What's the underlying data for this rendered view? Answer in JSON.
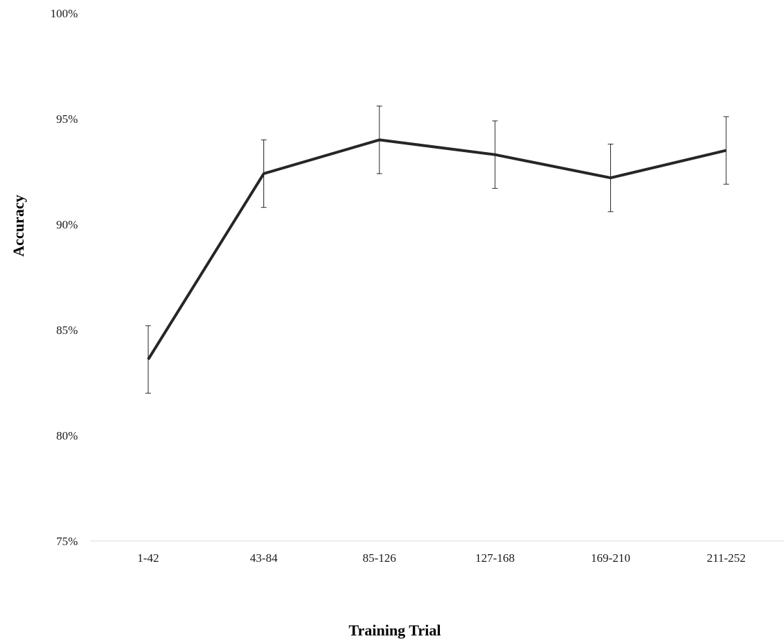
{
  "chart_data": {
    "type": "line",
    "title": "",
    "xlabel": "Training Trial",
    "ylabel": "Accuracy",
    "categories": [
      "1-42",
      "43-84",
      "85-126",
      "127-168",
      "169-210",
      "211-252"
    ],
    "series": [
      {
        "values": [
          83.6,
          92.4,
          94.0,
          93.3,
          92.2,
          93.5
        ],
        "error": [
          1.6,
          1.6,
          1.6,
          1.6,
          1.6,
          1.6
        ]
      }
    ],
    "ylim": [
      75,
      100
    ],
    "yticks": [
      75,
      80,
      85,
      90,
      95,
      100
    ],
    "ytick_labels": [
      "75%",
      "80%",
      "85%",
      "90%",
      "95%",
      "100%"
    ],
    "grid": false,
    "legend": "none",
    "colors": {
      "line": "#262626",
      "axis": "#d9d9d9",
      "error_bar": "#262626"
    }
  }
}
